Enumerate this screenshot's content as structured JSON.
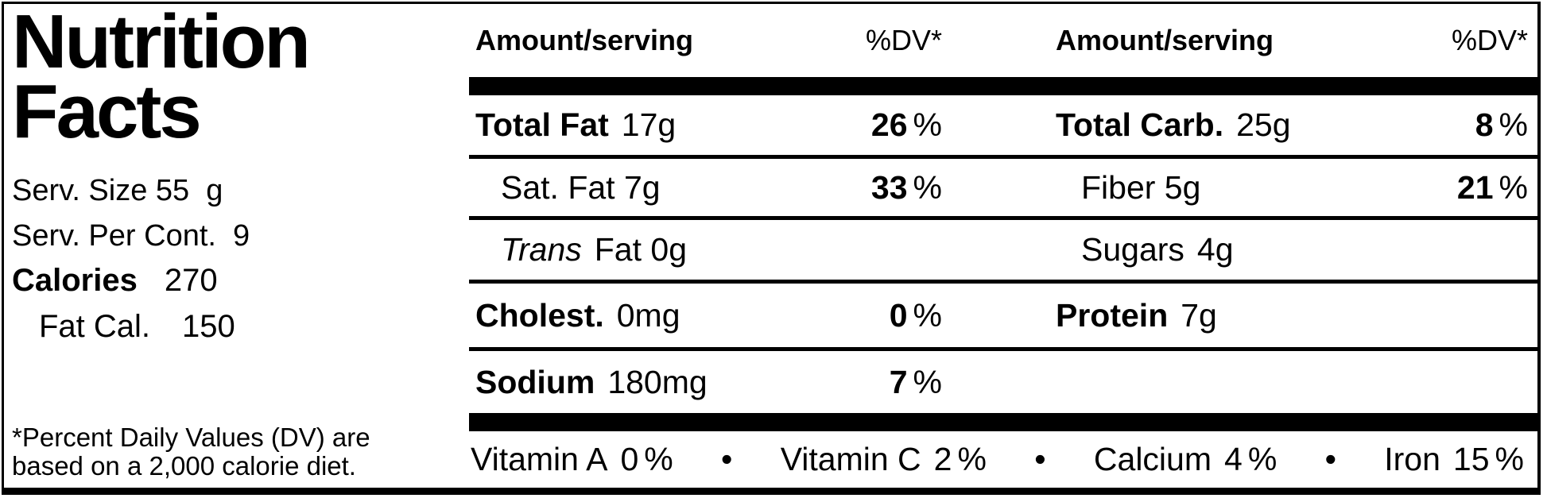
{
  "left": {
    "title_line1": "Nutrition",
    "title_line2": "Facts",
    "serv_size": "Serv. Size 55  g",
    "serv_per_cont": "Serv. Per Cont.  9",
    "calories_label": "Calories",
    "calories_value": "270",
    "fat_cal_label": "Fat Cal.",
    "fat_cal_value": "150",
    "footnote_line1": "*Percent Daily Values (DV) are",
    "footnote_line2": "based on a 2,000 calorie diet."
  },
  "table": {
    "header": {
      "amount": "Amount/serving",
      "dv": "%DV*"
    },
    "rows": [
      {
        "left": {
          "name": "Total Fat",
          "amount": "17g",
          "dv": "26",
          "pct": "%"
        },
        "right": {
          "name": "Total Carb.",
          "amount": "25g",
          "dv": "8",
          "pct": "%"
        }
      },
      {
        "left": {
          "text": "Sat. Fat 7g",
          "dv": "33",
          "pct": "%"
        },
        "right": {
          "text": "Fiber 5g",
          "dv": "21",
          "pct": "%"
        }
      },
      {
        "left": {
          "italic": "Trans",
          "rest": "Fat 0g"
        },
        "right": {
          "text": "Sugars",
          "amount": "4g"
        }
      },
      {
        "left": {
          "name": "Cholest.",
          "amount": "0mg",
          "dv": "0",
          "pct": "%"
        },
        "right": {
          "name": "Protein",
          "amount": "7g"
        }
      },
      {
        "left": {
          "name": "Sodium",
          "amount": "180mg",
          "dv": "7",
          "pct": "%"
        },
        "right": {}
      }
    ],
    "vitamins": {
      "bullet": "•",
      "items": [
        {
          "name": "Vitamin A",
          "value": "0",
          "pct": "%"
        },
        {
          "name": "Vitamin C",
          "value": "2",
          "pct": "%"
        },
        {
          "name": "Calcium",
          "value": "4",
          "pct": "%"
        },
        {
          "name": "Iron",
          "value": "15",
          "pct": "%"
        }
      ]
    }
  },
  "colors": {
    "ink": "#000000",
    "paper": "#ffffff"
  }
}
